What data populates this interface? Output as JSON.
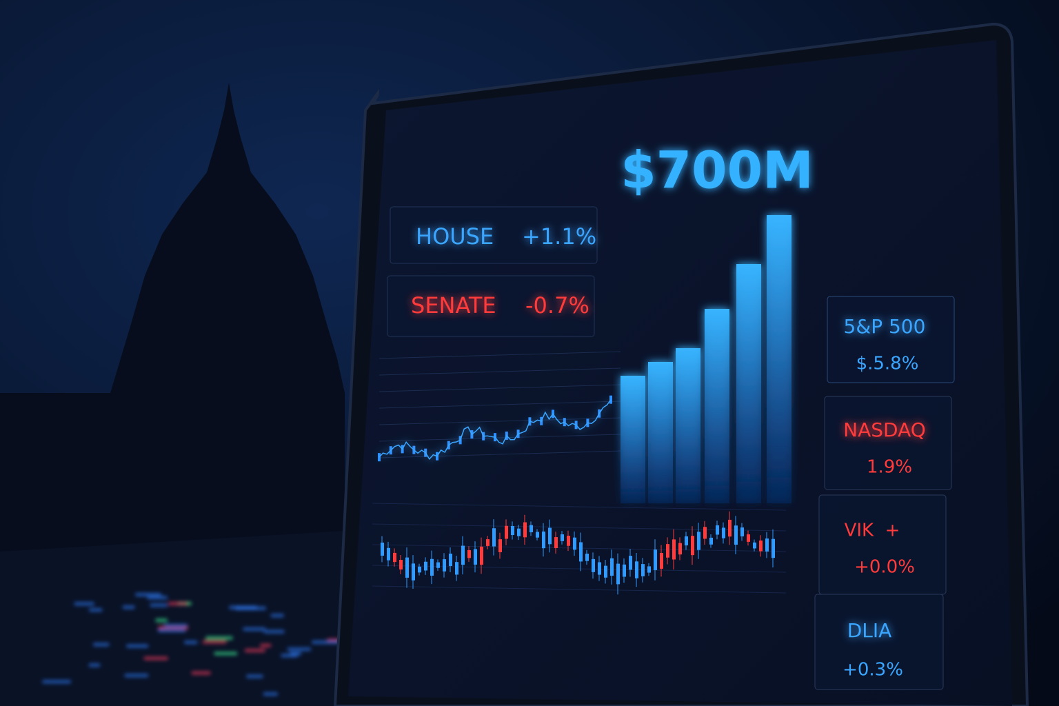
{
  "headline": "$700M",
  "chambers": [
    {
      "label": "HOUSE",
      "change": "+1.1%"
    },
    {
      "label": "SENATE",
      "change": "-0.7%"
    }
  ],
  "indices": [
    {
      "name": "5&P 500",
      "change": "$.5.8%"
    },
    {
      "name": "NASDAQ",
      "change": "1.9%"
    },
    {
      "name": "VIK  +",
      "change": "+0.0%"
    },
    {
      "name": "DLIA",
      "change": "+0.3%"
    }
  ]
}
